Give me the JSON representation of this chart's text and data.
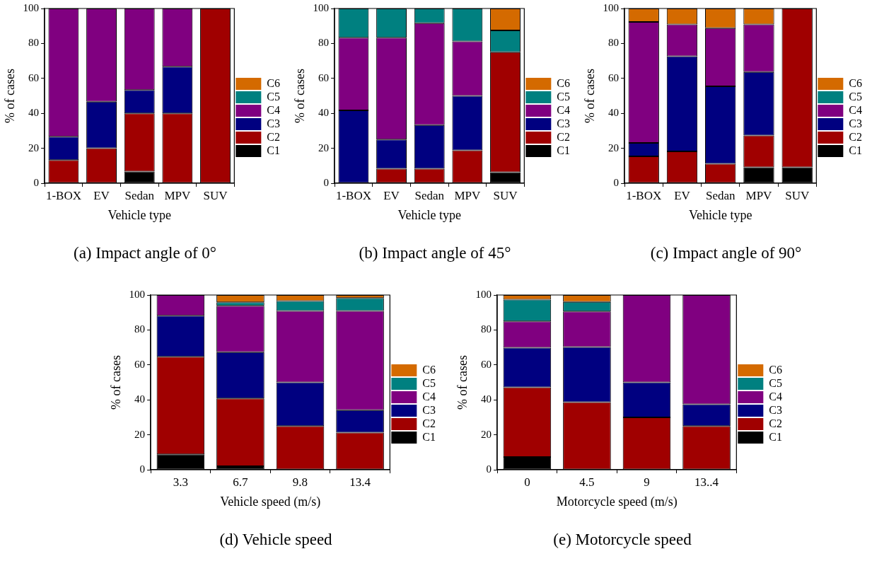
{
  "chart_data": [
    {
      "type": "bar",
      "stacked": true,
      "xlabel": "Vehicle type",
      "ylabel": "% of cases",
      "categories": [
        "1-BOX",
        "EV",
        "Sedan",
        "MPV",
        "SUV"
      ],
      "ylim": [
        0,
        100
      ],
      "yticks": [
        0,
        20,
        40,
        60,
        80,
        100
      ],
      "grid": false,
      "legend": "right",
      "annotations": [
        "(a) Impact angle of 0°"
      ],
      "series": [
        {
          "name": "C1",
          "color": "#000000",
          "values": [
            0,
            0,
            6.7,
            0,
            0
          ]
        },
        {
          "name": "C2",
          "color": "#a00000",
          "values": [
            13.3,
            20,
            33.3,
            40,
            100
          ]
        },
        {
          "name": "C3",
          "color": "#000080",
          "values": [
            13.3,
            26.7,
            13.3,
            26.7,
            0
          ]
        },
        {
          "name": "C4",
          "color": "#800080",
          "values": [
            73.4,
            53.3,
            46.7,
            33.3,
            0
          ]
        },
        {
          "name": "C5",
          "color": "#008080",
          "values": [
            0,
            0,
            0,
            0,
            0
          ]
        },
        {
          "name": "C6",
          "color": "#d46a00",
          "values": [
            0,
            0,
            0,
            0,
            0
          ]
        }
      ]
    },
    {
      "type": "bar",
      "stacked": true,
      "xlabel": "Vehicle type",
      "ylabel": "% of cases",
      "categories": [
        "1-BOX",
        "EV",
        "Sedan",
        "MPV",
        "SUV"
      ],
      "ylim": [
        0,
        100
      ],
      "yticks": [
        0,
        20,
        40,
        60,
        80,
        100
      ],
      "grid": false,
      "legend": "right",
      "annotations": [
        "(b) Impact angle of 45°"
      ],
      "series": [
        {
          "name": "C1",
          "color": "#000000",
          "values": [
            0,
            0,
            0,
            0,
            6.3
          ]
        },
        {
          "name": "C2",
          "color": "#a00000",
          "values": [
            0,
            8.3,
            8.3,
            18.8,
            68.7
          ]
        },
        {
          "name": "C3",
          "color": "#000080",
          "values": [
            41.7,
            16.7,
            25,
            31.2,
            0
          ]
        },
        {
          "name": "C4",
          "color": "#800080",
          "values": [
            41.6,
            58.3,
            58.3,
            31.2,
            0
          ]
        },
        {
          "name": "C5",
          "color": "#008080",
          "values": [
            16.7,
            16.7,
            8.4,
            18.8,
            12.5
          ]
        },
        {
          "name": "C6",
          "color": "#d46a00",
          "values": [
            0,
            0,
            0,
            0,
            12.5
          ]
        }
      ]
    },
    {
      "type": "bar",
      "stacked": true,
      "xlabel": "Vehicle type",
      "ylabel": "% of cases",
      "categories": [
        "1-BOX",
        "EV",
        "Sedan",
        "MPV",
        "SUV"
      ],
      "ylim": [
        0,
        100
      ],
      "yticks": [
        0,
        20,
        40,
        60,
        80,
        100
      ],
      "grid": false,
      "legend": "right",
      "annotations": [
        "(c) Impact angle of 90°"
      ],
      "series": [
        {
          "name": "C1",
          "color": "#000000",
          "values": [
            0,
            0,
            0,
            9.1,
            9.1
          ]
        },
        {
          "name": "C2",
          "color": "#a00000",
          "values": [
            15.4,
            18.2,
            11.1,
            18.2,
            90.9
          ]
        },
        {
          "name": "C3",
          "color": "#000080",
          "values": [
            7.7,
            54.5,
            44.4,
            36.4,
            0
          ]
        },
        {
          "name": "C4",
          "color": "#800080",
          "values": [
            69.2,
            18.2,
            33.3,
            27.2,
            0
          ]
        },
        {
          "name": "C5",
          "color": "#008080",
          "values": [
            0,
            0,
            0,
            0,
            0
          ]
        },
        {
          "name": "C6",
          "color": "#d46a00",
          "values": [
            7.7,
            9.1,
            11.2,
            9.1,
            0
          ]
        }
      ]
    },
    {
      "type": "bar",
      "stacked": true,
      "xlabel": "Vehicle speed (m/s)",
      "ylabel": "% of cases",
      "categories": [
        "3.3",
        "6.7",
        "9.8",
        "13.4"
      ],
      "ylim": [
        0,
        100
      ],
      "yticks": [
        0,
        20,
        40,
        60,
        80,
        100
      ],
      "grid": false,
      "legend": "right",
      "annotations": [
        "(d) Vehicle speed"
      ],
      "series": [
        {
          "name": "C1",
          "color": "#000000",
          "values": [
            8.8,
            2,
            0,
            0
          ]
        },
        {
          "name": "C2",
          "color": "#a00000",
          "values": [
            55.9,
            38.8,
            25,
            21.3
          ]
        },
        {
          "name": "C3",
          "color": "#000080",
          "values": [
            23.5,
            26.5,
            25,
            12.8
          ]
        },
        {
          "name": "C4",
          "color": "#800080",
          "values": [
            11.8,
            26.5,
            40.9,
            56.8
          ]
        },
        {
          "name": "C5",
          "color": "#008080",
          "values": [
            0,
            2,
            5.7,
            7.4
          ]
        },
        {
          "name": "C6",
          "color": "#d46a00",
          "values": [
            0,
            4.2,
            3.4,
            1.7
          ]
        }
      ]
    },
    {
      "type": "bar",
      "stacked": true,
      "xlabel": "Motorcycle speed (m/s)",
      "ylabel": "% of cases",
      "categories": [
        "0",
        "4.5",
        "9",
        "13..4"
      ],
      "ylim": [
        0,
        100
      ],
      "yticks": [
        0,
        20,
        40,
        60,
        80,
        100
      ],
      "grid": false,
      "legend": "right",
      "annotations": [
        "(e) Motorcycle speed"
      ],
      "series": [
        {
          "name": "C1",
          "color": "#000000",
          "values": [
            7.3,
            0,
            0,
            0
          ]
        },
        {
          "name": "C2",
          "color": "#a00000",
          "values": [
            39.9,
            38.7,
            30,
            25
          ]
        },
        {
          "name": "C3",
          "color": "#000080",
          "values": [
            22.6,
            31.5,
            20,
            12.5
          ]
        },
        {
          "name": "C4",
          "color": "#800080",
          "values": [
            15.1,
            20.4,
            50,
            62.5
          ]
        },
        {
          "name": "C5",
          "color": "#008080",
          "values": [
            12.5,
            5.5,
            0,
            0
          ]
        },
        {
          "name": "C6",
          "color": "#d46a00",
          "values": [
            2.6,
            3.9,
            0,
            0
          ]
        }
      ]
    }
  ]
}
